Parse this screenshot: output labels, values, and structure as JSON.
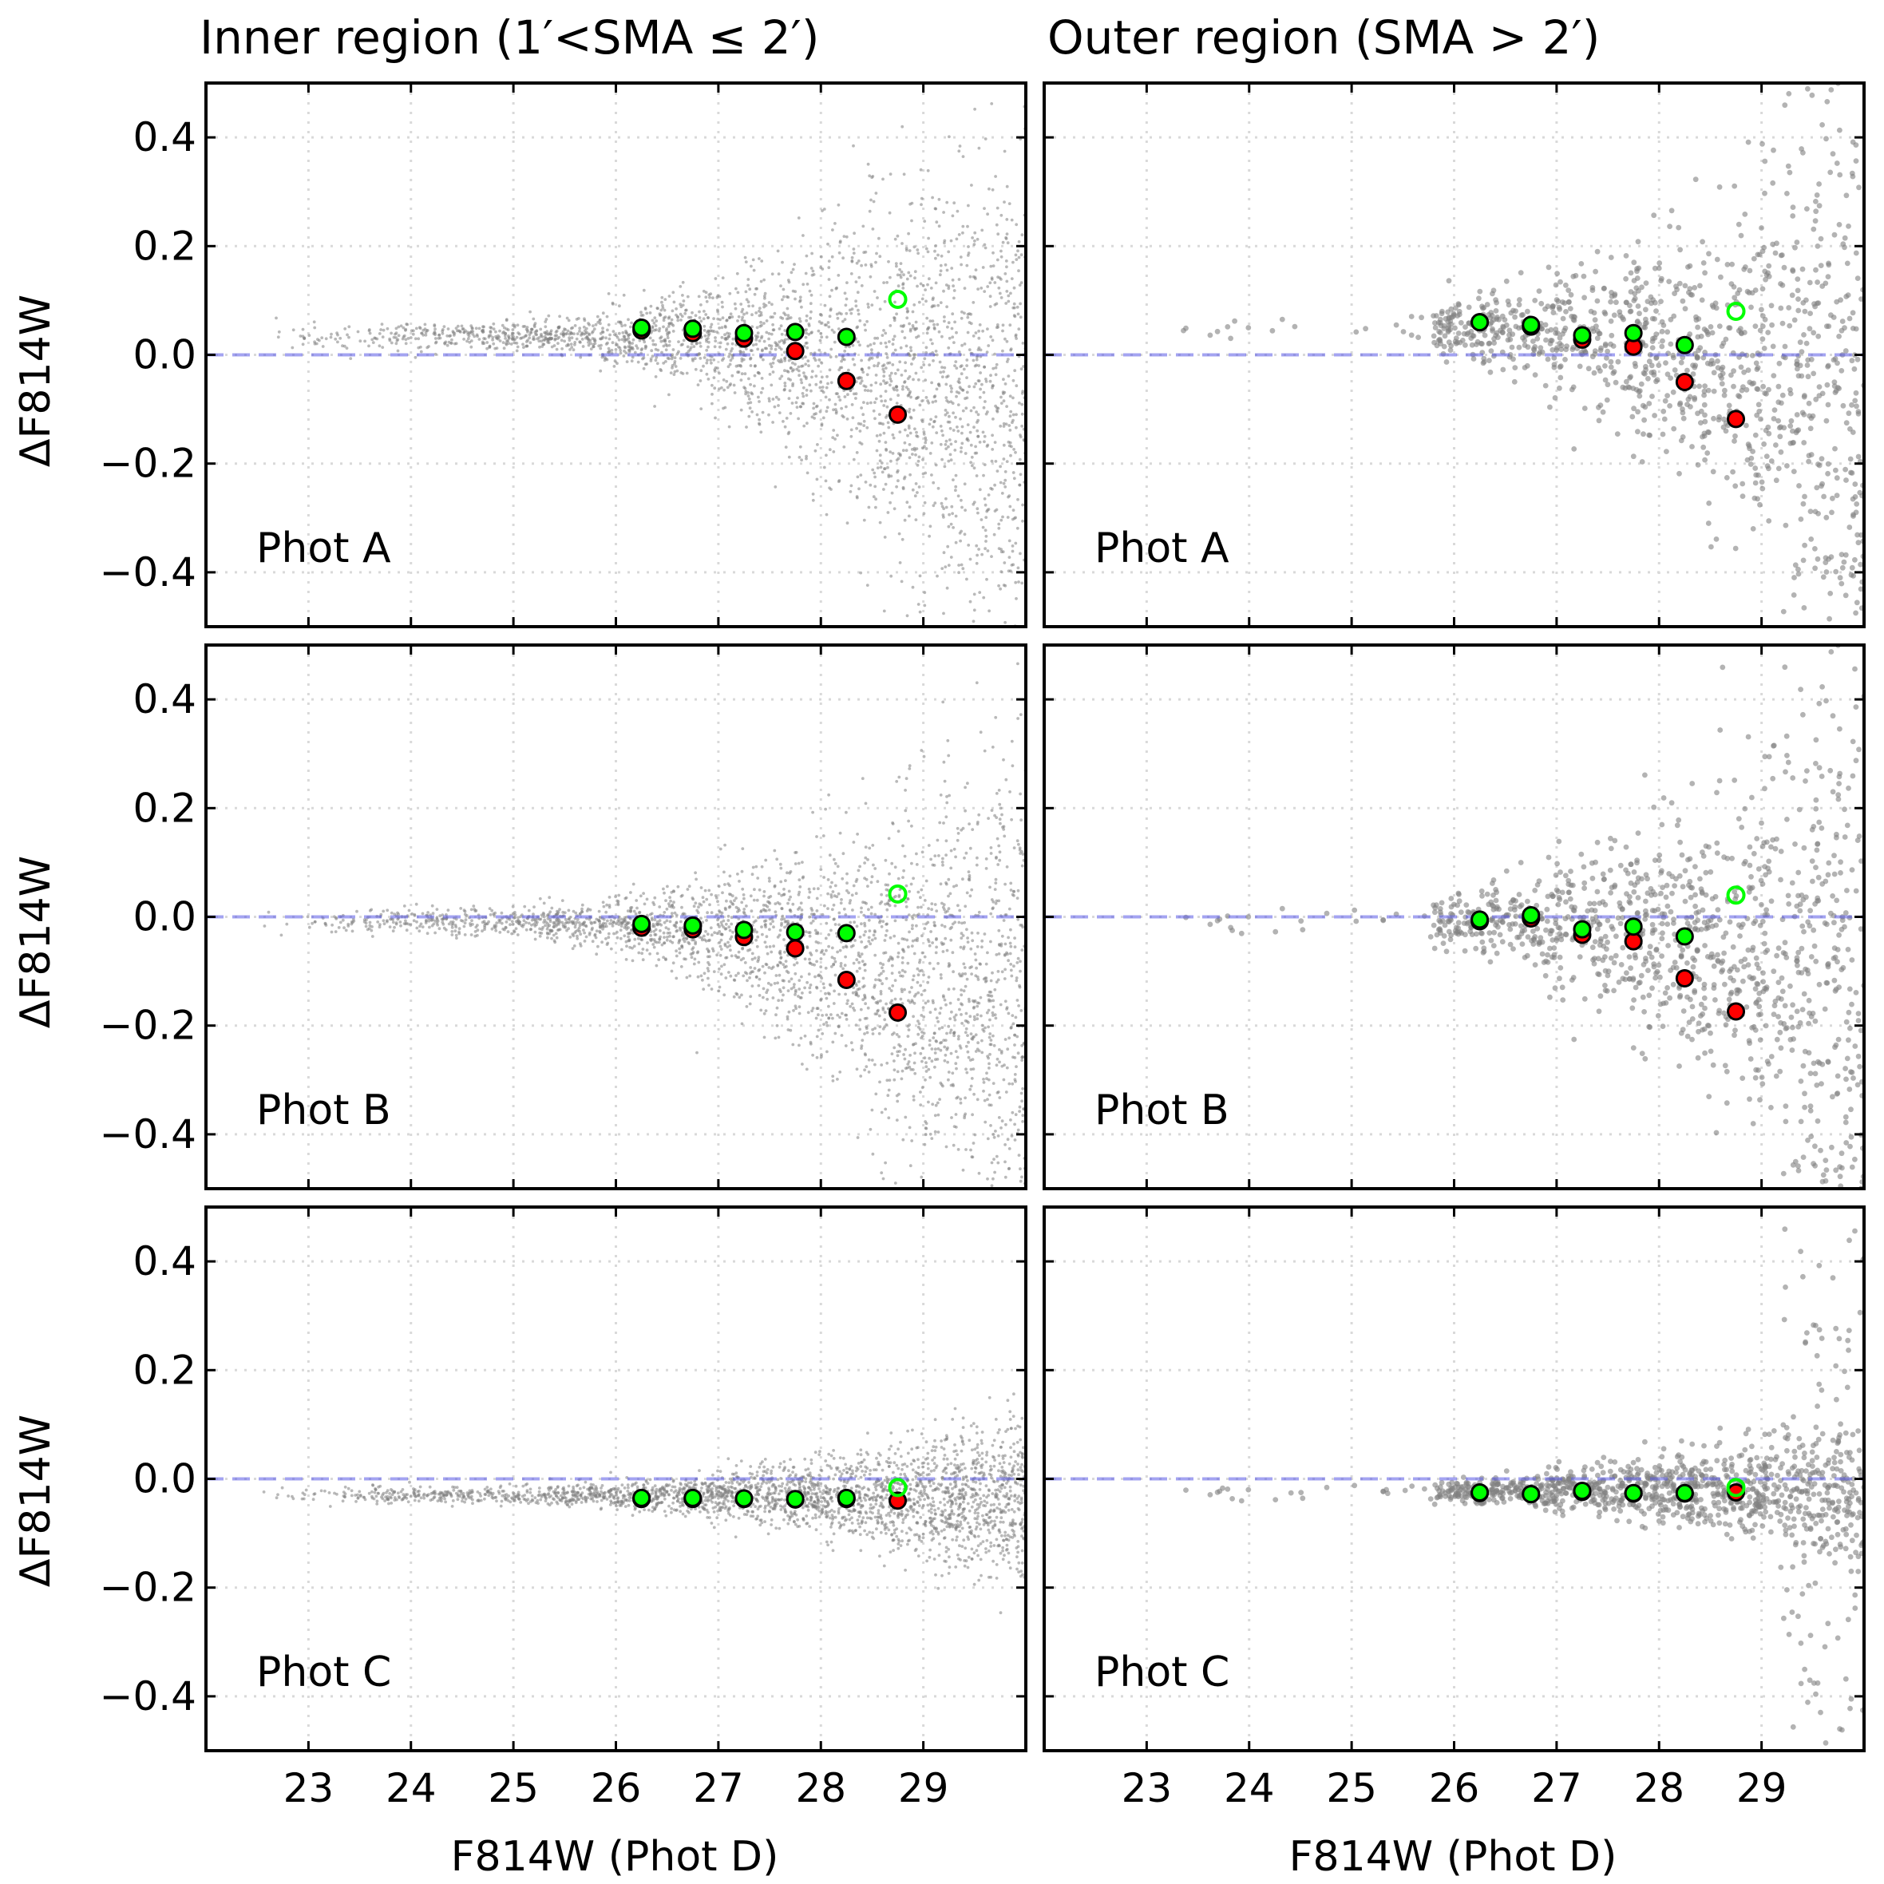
{
  "chart_data": {
    "type": "scatter",
    "column_titles": [
      "Inner region (1′<SMA ≤ 2′)",
      "Outer region (SMA  > 2′)"
    ],
    "xlabel": "F814W (Phot D)",
    "ylabel": "ΔF814W",
    "xlim": [
      22,
      30
    ],
    "ylim": [
      -0.5,
      0.5
    ],
    "xticks": [
      "23",
      "24",
      "25",
      "26",
      "27",
      "28",
      "29"
    ],
    "yticks": [
      "0.4",
      "0.2",
      "0.0",
      "−0.2",
      "−0.4"
    ],
    "reference_line_y": 0.0,
    "colors": {
      "median": "#ff0000",
      "clipped": "#00ff00",
      "scatter": "#808080",
      "reference": "#5a5ae6"
    },
    "series_descriptions": [
      "grey: individual stars",
      "red: median ΔF814W per bin",
      "green: sigma-clipped mean per bin (open = faintest bin)"
    ],
    "panels": [
      {
        "region": "inner",
        "label": "Phot A",
        "bins": [
          26.25,
          26.75,
          27.25,
          27.75,
          28.25,
          28.75
        ],
        "red": [
          0.045,
          0.04,
          0.03,
          0.007,
          -0.048,
          -0.11
        ],
        "green": [
          0.05,
          0.048,
          0.04,
          0.042,
          0.033,
          0.102
        ]
      },
      {
        "region": "outer",
        "label": "Phot A",
        "bins": [
          26.25,
          26.75,
          27.25,
          27.75,
          28.25,
          28.75
        ],
        "red": [
          0.06,
          0.052,
          0.028,
          0.015,
          -0.05,
          -0.118
        ],
        "green": [
          0.06,
          0.055,
          0.036,
          0.04,
          0.018,
          0.08
        ]
      },
      {
        "region": "inner",
        "label": "Phot B",
        "bins": [
          26.25,
          26.75,
          27.25,
          27.75,
          28.25,
          28.75
        ],
        "red": [
          -0.02,
          -0.023,
          -0.037,
          -0.058,
          -0.116,
          -0.176
        ],
        "green": [
          -0.013,
          -0.016,
          -0.024,
          -0.028,
          -0.03,
          0.042
        ]
      },
      {
        "region": "outer",
        "label": "Phot B",
        "bins": [
          26.25,
          26.75,
          27.25,
          27.75,
          28.25,
          28.75
        ],
        "red": [
          -0.008,
          -0.003,
          -0.033,
          -0.045,
          -0.113,
          -0.174
        ],
        "green": [
          -0.005,
          0.003,
          -0.023,
          -0.018,
          -0.036,
          0.04
        ]
      },
      {
        "region": "inner",
        "label": "Phot C",
        "bins": [
          26.25,
          26.75,
          27.25,
          27.75,
          28.25,
          28.75
        ],
        "red": [
          -0.037,
          -0.037,
          -0.037,
          -0.038,
          -0.037,
          -0.04
        ],
        "green": [
          -0.035,
          -0.035,
          -0.036,
          -0.037,
          -0.035,
          -0.016
        ]
      },
      {
        "region": "outer",
        "label": "Phot C",
        "bins": [
          26.25,
          26.75,
          27.25,
          27.75,
          28.25,
          28.75
        ],
        "red": [
          -0.026,
          -0.028,
          -0.024,
          -0.027,
          -0.027,
          -0.025
        ],
        "green": [
          -0.025,
          -0.028,
          -0.022,
          -0.026,
          -0.026,
          -0.016
        ]
      }
    ],
    "scatter_model": [
      {
        "offset": 0.035,
        "spreadBright": 0.012,
        "spreadFaint": 0.26,
        "faintBias": -0.16,
        "inner": true
      },
      {
        "offset": 0.05,
        "spreadBright": 0.012,
        "spreadFaint": 0.24,
        "faintBias": -0.14,
        "inner": false
      },
      {
        "offset": -0.01,
        "spreadBright": 0.012,
        "spreadFaint": 0.24,
        "faintBias": -0.2,
        "inner": true
      },
      {
        "offset": 0.0,
        "spreadBright": 0.012,
        "spreadFaint": 0.24,
        "faintBias": -0.16,
        "inner": false
      },
      {
        "offset": -0.03,
        "spreadBright": 0.008,
        "spreadFaint": 0.07,
        "faintBias": -0.01,
        "inner": true
      },
      {
        "offset": -0.02,
        "spreadBright": 0.008,
        "spreadFaint": 0.06,
        "faintBias": -0.01,
        "inner": false
      }
    ]
  }
}
